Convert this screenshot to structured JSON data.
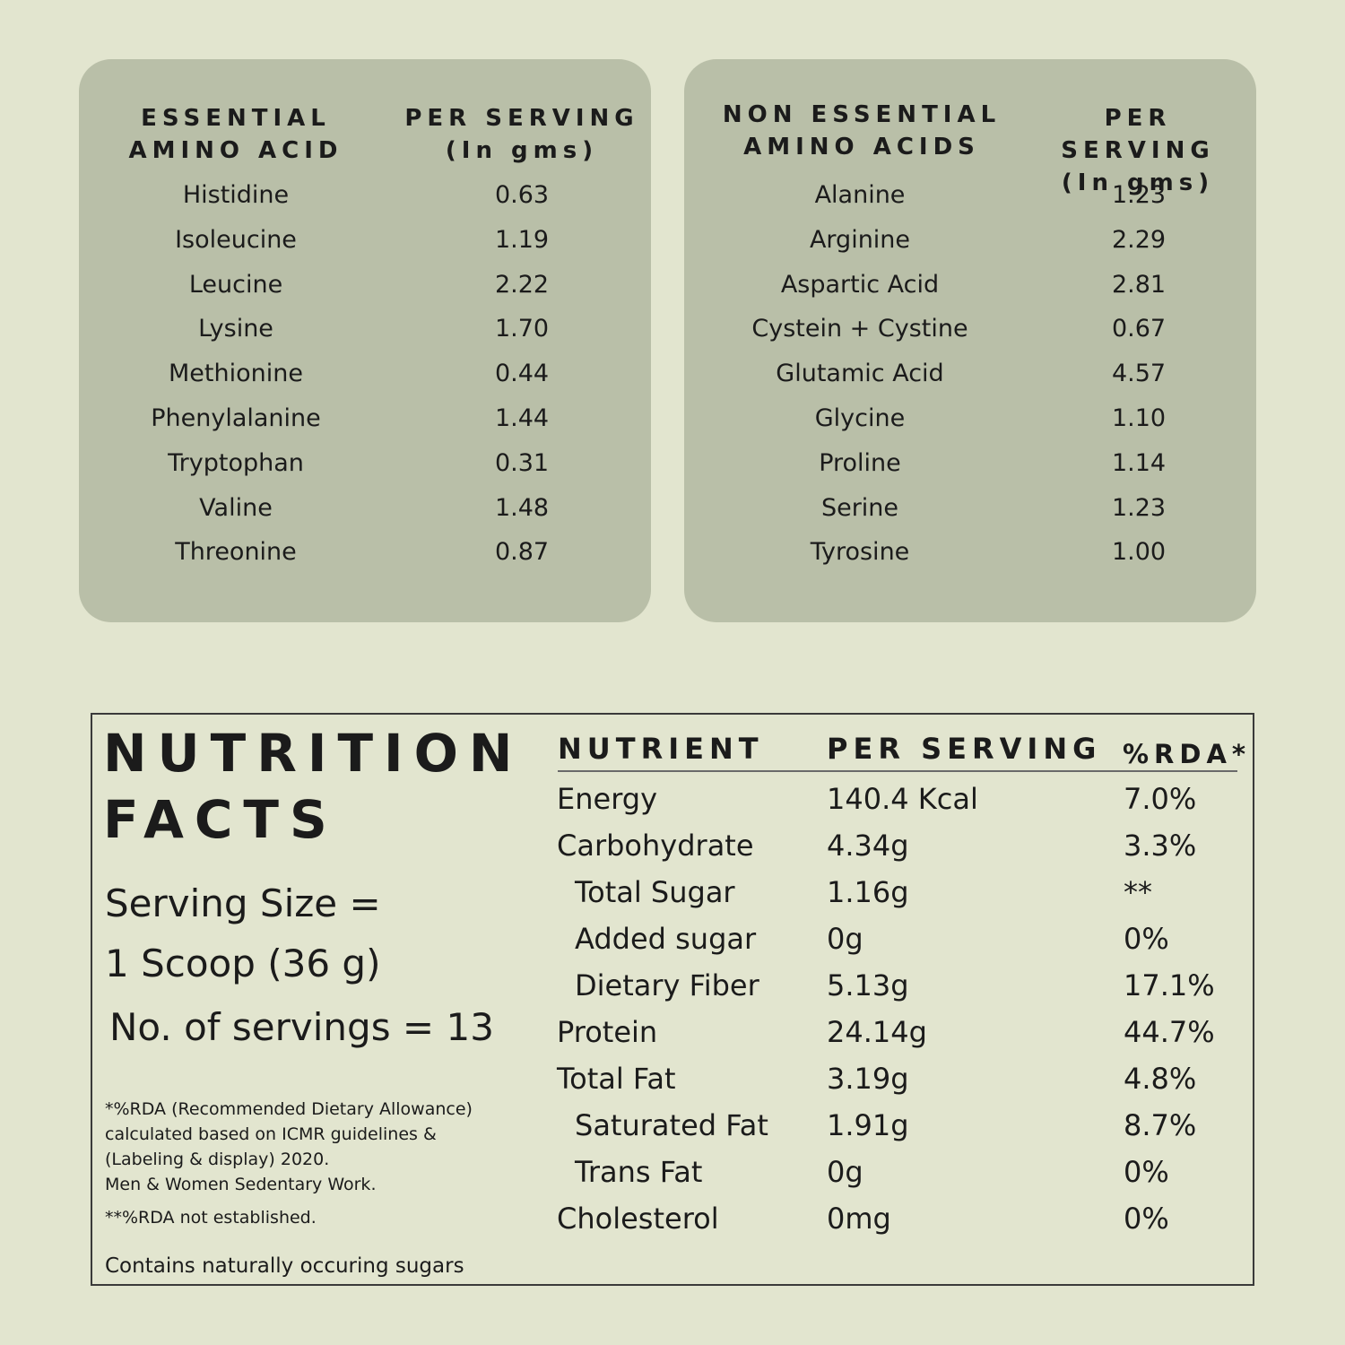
{
  "essential_panel": {
    "header_name": "ESSENTIAL\nAMINO ACID",
    "header_value": "PER SERVING\n(In gms)",
    "rows": [
      {
        "name": "Histidine",
        "value": "0.63"
      },
      {
        "name": "Isoleucine",
        "value": "1.19"
      },
      {
        "name": "Leucine",
        "value": "2.22"
      },
      {
        "name": "Lysine",
        "value": "1.70"
      },
      {
        "name": "Methionine",
        "value": "0.44"
      },
      {
        "name": "Phenylalanine",
        "value": "1.44"
      },
      {
        "name": "Tryptophan",
        "value": "0.31"
      },
      {
        "name": "Valine",
        "value": "1.48"
      },
      {
        "name": "Threonine",
        "value": "0.87"
      }
    ]
  },
  "nonessential_panel": {
    "header_name": "NON ESSENTIAL\nAMINO ACIDS",
    "header_value": "PER SERVING\n(In gms)",
    "rows": [
      {
        "name": "Alanine",
        "value": "1.23"
      },
      {
        "name": "Arginine",
        "value": "2.29"
      },
      {
        "name": "Aspartic Acid",
        "value": "2.81"
      },
      {
        "name": "Cystein + Cystine",
        "value": "0.67"
      },
      {
        "name": "Glutamic Acid",
        "value": "4.57"
      },
      {
        "name": "Glycine",
        "value": "1.10"
      },
      {
        "name": "Proline",
        "value": "1.14"
      },
      {
        "name": "Serine",
        "value": "1.23"
      },
      {
        "name": "Tyrosine",
        "value": "1.00"
      }
    ]
  },
  "nutrition": {
    "title_line1": "NUTRITION",
    "title_line2": "FACTS",
    "serving_size_line1": "Serving Size =",
    "serving_size_line2": "1 Scoop (36 g)",
    "servings_count": "No. of servings = 13",
    "footnote_lines": [
      "*%RDA (Recommended Dietary Allowance)",
      "calculated based on ICMR guidelines &",
      "(Labeling & display) 2020.",
      "Men & Women Sedentary Work."
    ],
    "footnote_rda": "**%RDA not established.",
    "footnote_sugars": "Contains naturally occuring sugars",
    "header_nutrient": "NUTRIENT",
    "header_per_serving": "PER SERVING",
    "header_rda": "%RDA*",
    "rows": [
      {
        "name": "Energy",
        "amount": "140.4 Kcal",
        "rda": "7.0%",
        "indent": false
      },
      {
        "name": "Carbohydrate",
        "amount": "4.34g",
        "rda": "3.3%",
        "indent": false
      },
      {
        "name": "Total Sugar",
        "amount": "1.16g",
        "rda": "**",
        "indent": true
      },
      {
        "name": "Added sugar",
        "amount": "0g",
        "rda": "0%",
        "indent": true
      },
      {
        "name": "Dietary Fiber",
        "amount": "5.13g",
        "rda": "17.1%",
        "indent": true
      },
      {
        "name": "Protein",
        "amount": "24.14g",
        "rda": "44.7%",
        "indent": false
      },
      {
        "name": "Total Fat",
        "amount": "3.19g",
        "rda": "4.8%",
        "indent": false
      },
      {
        "name": "Saturated Fat",
        "amount": "1.91g",
        "rda": "8.7%",
        "indent": true
      },
      {
        "name": "Trans Fat",
        "amount": "0g",
        "rda": "0%",
        "indent": true
      },
      {
        "name": "Cholesterol",
        "amount": "0mg",
        "rda": "0%",
        "indent": false
      }
    ]
  }
}
